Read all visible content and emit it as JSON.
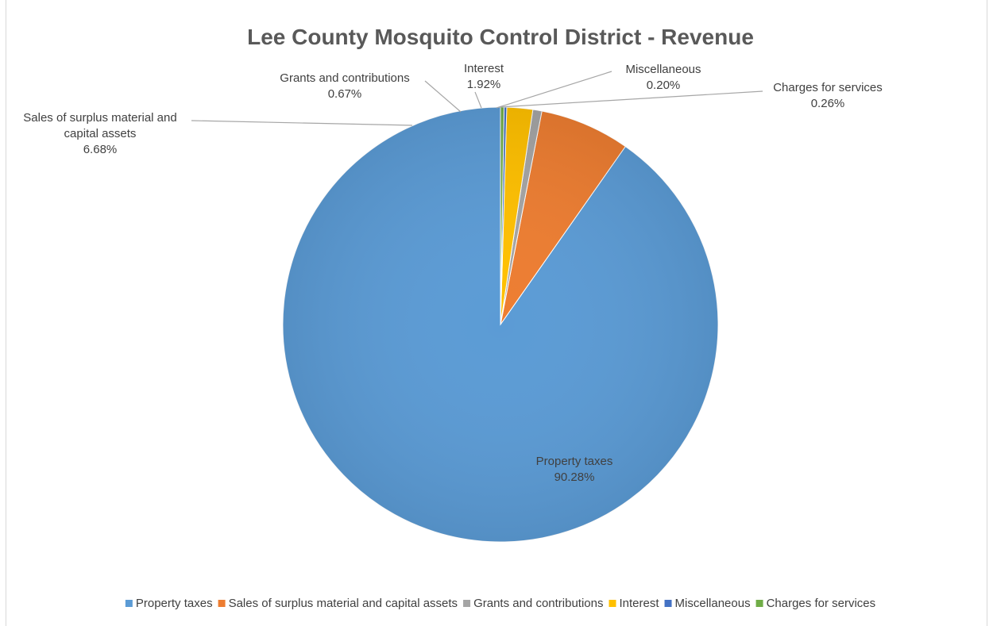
{
  "chart_data": {
    "type": "pie",
    "title": "Lee County Mosquito Control District - Revenue",
    "slices": [
      {
        "label": "Property taxes",
        "value": 90.28,
        "value_label": "90.28%",
        "color": "#5b9bd5"
      },
      {
        "label": "Sales of surplus material and capital assets",
        "value": 6.68,
        "value_label": "6.68%",
        "color": "#ed7d31"
      },
      {
        "label": "Grants and contributions",
        "value": 0.67,
        "value_label": "0.67%",
        "color": "#a5a5a5"
      },
      {
        "label": "Interest",
        "value": 1.92,
        "value_label": "1.92%",
        "color": "#ffc000"
      },
      {
        "label": "Miscellaneous",
        "value": 0.2,
        "value_label": "0.20%",
        "color": "#4472c4"
      },
      {
        "label": "Charges for services",
        "value": 0.26,
        "value_label": "0.26%",
        "color": "#70ad47"
      }
    ],
    "data_label_lines": [
      [
        "Property taxes",
        "90.28%"
      ],
      [
        "Sales of surplus material and",
        "capital assets",
        "6.68%"
      ],
      [
        "Grants and contributions",
        "0.67%"
      ],
      [
        "Interest",
        "1.92%"
      ],
      [
        "Miscellaneous",
        "0.20%"
      ],
      [
        "Charges for services",
        "0.26%"
      ]
    ],
    "legend_position": "bottom",
    "start_angle": "12 o'clock",
    "direction": "counterclockwise"
  }
}
